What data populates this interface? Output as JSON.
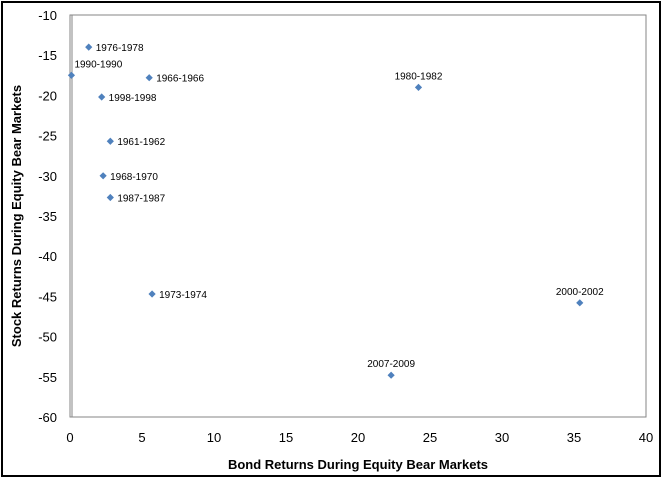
{
  "chart_data": {
    "type": "scatter",
    "title": "",
    "xlabel": "Bond Returns During Equity Bear Markets",
    "ylabel": "Stock Returns During Equity Bear Markets",
    "xlim": [
      0,
      40
    ],
    "ylim": [
      -60,
      -10
    ],
    "xticks": [
      0,
      5,
      10,
      15,
      20,
      25,
      30,
      35,
      40
    ],
    "yticks": [
      -10,
      -15,
      -20,
      -25,
      -30,
      -35,
      -40,
      -45,
      -50,
      -55,
      -60
    ],
    "grid": false,
    "legend": "none",
    "marker_color": "#4F81BD",
    "points": [
      {
        "label": "1976-1978",
        "x": 1.3,
        "y": -14.0
      },
      {
        "label": "1990-1990",
        "x": 0.1,
        "y": -17.5
      },
      {
        "label": "1966-1966",
        "x": 5.5,
        "y": -17.8
      },
      {
        "label": "1998-1998",
        "x": 2.2,
        "y": -20.2
      },
      {
        "label": "1980-1982",
        "x": 24.2,
        "y": -19.0
      },
      {
        "label": "1961-1962",
        "x": 2.8,
        "y": -25.7
      },
      {
        "label": "1968-1970",
        "x": 2.3,
        "y": -30.0
      },
      {
        "label": "1987-1987",
        "x": 2.8,
        "y": -32.7
      },
      {
        "label": "1973-1974",
        "x": 5.7,
        "y": -44.7
      },
      {
        "label": "2000-2002",
        "x": 35.4,
        "y": -45.8
      },
      {
        "label": "2007-2009",
        "x": 22.3,
        "y": -54.8
      }
    ]
  }
}
